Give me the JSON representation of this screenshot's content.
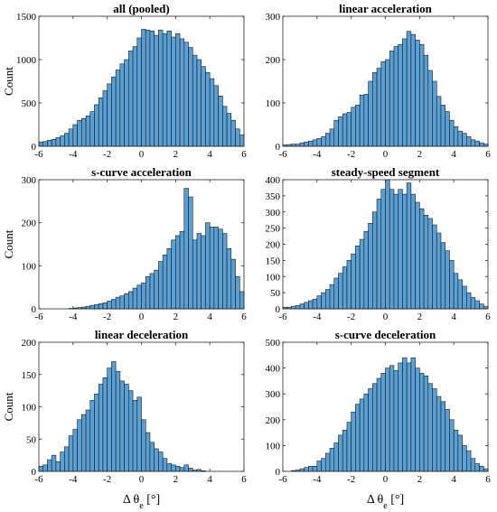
{
  "chart_data": [
    {
      "type": "histogram",
      "title": "all (pooled)",
      "ylabel": "Count",
      "xlabel": "",
      "xlim": [
        -6,
        6
      ],
      "ylim": [
        0,
        1500
      ],
      "xticks": [
        -6,
        -4,
        -2,
        0,
        2,
        4,
        6
      ],
      "yticks": [
        0,
        500,
        1000,
        1500
      ],
      "bin_edges": [
        -6.0,
        -5.75,
        -5.5,
        -5.25,
        -5.0,
        -4.75,
        -4.5,
        -4.25,
        -4.0,
        -3.75,
        -3.5,
        -3.25,
        -3.0,
        -2.75,
        -2.5,
        -2.25,
        -2.0,
        -1.75,
        -1.5,
        -1.25,
        -1.0,
        -0.75,
        -0.5,
        -0.25,
        0.0,
        0.25,
        0.5,
        0.75,
        1.0,
        1.25,
        1.5,
        1.75,
        2.0,
        2.25,
        2.5,
        2.75,
        3.0,
        3.25,
        3.5,
        3.75,
        4.0,
        4.25,
        4.5,
        4.75,
        5.0,
        5.25,
        5.5,
        5.75,
        6.0
      ],
      "counts": [
        50,
        55,
        70,
        80,
        100,
        120,
        150,
        200,
        250,
        300,
        320,
        350,
        400,
        480,
        560,
        640,
        720,
        800,
        880,
        950,
        1000,
        1100,
        1150,
        1250,
        1350,
        1340,
        1330,
        1280,
        1340,
        1300,
        1330,
        1260,
        1300,
        1240,
        1200,
        1140,
        1050,
        1000,
        920,
        850,
        780,
        700,
        580,
        460,
        380,
        300,
        200,
        130
      ]
    },
    {
      "type": "histogram",
      "title": "linear acceleration",
      "ylabel": "",
      "xlabel": "",
      "xlim": [
        -6,
        6
      ],
      "ylim": [
        0,
        300
      ],
      "xticks": [
        -6,
        -4,
        -2,
        0,
        2,
        4,
        6
      ],
      "yticks": [
        0,
        100,
        200,
        300
      ],
      "bin_edges": [
        -6.0,
        -5.75,
        -5.5,
        -5.25,
        -5.0,
        -4.75,
        -4.5,
        -4.25,
        -4.0,
        -3.75,
        -3.5,
        -3.25,
        -3.0,
        -2.75,
        -2.5,
        -2.25,
        -2.0,
        -1.75,
        -1.5,
        -1.25,
        -1.0,
        -0.75,
        -0.5,
        -0.25,
        0.0,
        0.25,
        0.5,
        0.75,
        1.0,
        1.25,
        1.5,
        1.75,
        2.0,
        2.25,
        2.5,
        2.75,
        3.0,
        3.25,
        3.5,
        3.75,
        4.0,
        4.25,
        4.5,
        4.75,
        5.0,
        5.25,
        5.5,
        5.75,
        6.0
      ],
      "counts": [
        3,
        4,
        5,
        5,
        8,
        10,
        12,
        15,
        18,
        22,
        30,
        40,
        60,
        68,
        75,
        78,
        90,
        95,
        118,
        120,
        150,
        170,
        180,
        195,
        200,
        220,
        230,
        235,
        248,
        265,
        258,
        245,
        235,
        210,
        175,
        150,
        115,
        95,
        80,
        60,
        45,
        35,
        30,
        22,
        15,
        12,
        8,
        5
      ]
    },
    {
      "type": "histogram",
      "title": "s-curve acceleration",
      "ylabel": "Count",
      "xlabel": "",
      "xlim": [
        -6,
        6
      ],
      "ylim": [
        0,
        300
      ],
      "xticks": [
        -6,
        -4,
        -2,
        0,
        2,
        4,
        6
      ],
      "yticks": [
        0,
        100,
        200,
        300
      ],
      "bin_edges": [
        -6.0,
        -5.75,
        -5.5,
        -5.25,
        -5.0,
        -4.75,
        -4.5,
        -4.25,
        -4.0,
        -3.75,
        -3.5,
        -3.25,
        -3.0,
        -2.75,
        -2.5,
        -2.25,
        -2.0,
        -1.75,
        -1.5,
        -1.25,
        -1.0,
        -0.75,
        -0.5,
        -0.25,
        0.0,
        0.25,
        0.5,
        0.75,
        1.0,
        1.25,
        1.5,
        1.75,
        2.0,
        2.25,
        2.5,
        2.75,
        3.0,
        3.25,
        3.5,
        3.75,
        4.0,
        4.25,
        4.5,
        4.75,
        5.0,
        5.25,
        5.5,
        5.75,
        6.0
      ],
      "counts": [
        0,
        0,
        0,
        0,
        0,
        0,
        0,
        1,
        2,
        3,
        4,
        6,
        8,
        10,
        12,
        14,
        18,
        22,
        27,
        30,
        35,
        40,
        48,
        55,
        60,
        75,
        82,
        90,
        110,
        125,
        140,
        160,
        170,
        180,
        280,
        260,
        160,
        175,
        170,
        200,
        190,
        190,
        185,
        175,
        140,
        115,
        75,
        40
      ]
    },
    {
      "type": "histogram",
      "title": "steady-speed segment",
      "ylabel": "",
      "xlabel": "",
      "xlim": [
        -6,
        6
      ],
      "ylim": [
        0,
        400
      ],
      "xticks": [
        -6,
        -4,
        -2,
        0,
        2,
        4,
        6
      ],
      "yticks": [
        0,
        50,
        100,
        150,
        200,
        250,
        300,
        350,
        400
      ],
      "bin_edges": [
        -6.0,
        -5.75,
        -5.5,
        -5.25,
        -5.0,
        -4.75,
        -4.5,
        -4.25,
        -4.0,
        -3.75,
        -3.5,
        -3.25,
        -3.0,
        -2.75,
        -2.5,
        -2.25,
        -2.0,
        -1.75,
        -1.5,
        -1.25,
        -1.0,
        -0.75,
        -0.5,
        -0.25,
        0.0,
        0.25,
        0.5,
        0.75,
        1.0,
        1.25,
        1.5,
        1.75,
        2.0,
        2.25,
        2.5,
        2.75,
        3.0,
        3.25,
        3.5,
        3.75,
        4.0,
        4.25,
        4.5,
        4.75,
        5.0,
        5.25,
        5.5,
        5.75,
        6.0
      ],
      "counts": [
        5,
        5,
        8,
        10,
        15,
        20,
        25,
        30,
        40,
        50,
        60,
        75,
        95,
        110,
        130,
        150,
        170,
        195,
        215,
        240,
        265,
        300,
        340,
        370,
        400,
        370,
        355,
        370,
        355,
        390,
        355,
        330,
        310,
        290,
        280,
        260,
        235,
        205,
        180,
        150,
        110,
        90,
        70,
        50,
        35,
        25,
        15,
        8
      ]
    },
    {
      "type": "histogram",
      "title": "linear deceleration",
      "ylabel": "Count",
      "xlabel": "Δ θe [°]",
      "xlim": [
        -6,
        6
      ],
      "ylim": [
        0,
        200
      ],
      "xticks": [
        -6,
        -4,
        -2,
        0,
        2,
        4,
        6
      ],
      "yticks": [
        0,
        50,
        100,
        150,
        200
      ],
      "bin_edges": [
        -6.0,
        -5.75,
        -5.5,
        -5.25,
        -5.0,
        -4.75,
        -4.5,
        -4.25,
        -4.0,
        -3.75,
        -3.5,
        -3.25,
        -3.0,
        -2.75,
        -2.5,
        -2.25,
        -2.0,
        -1.75,
        -1.5,
        -1.25,
        -1.0,
        -0.75,
        -0.5,
        -0.25,
        0.0,
        0.25,
        0.5,
        0.75,
        1.0,
        1.25,
        1.5,
        1.75,
        2.0,
        2.25,
        2.5,
        2.75,
        3.0,
        3.25,
        3.5,
        3.75,
        4.0,
        4.25,
        4.5,
        4.75,
        5.0,
        5.25,
        5.5,
        5.75,
        6.0
      ],
      "counts": [
        8,
        10,
        18,
        25,
        15,
        30,
        38,
        55,
        65,
        80,
        88,
        95,
        110,
        120,
        135,
        145,
        160,
        170,
        155,
        140,
        135,
        125,
        110,
        115,
        80,
        60,
        45,
        35,
        30,
        20,
        12,
        10,
        8,
        6,
        10,
        5,
        2,
        3,
        1,
        0,
        0,
        0,
        0,
        0,
        0,
        0,
        0,
        0
      ]
    },
    {
      "type": "histogram",
      "title": "s-curve deceleration",
      "ylabel": "",
      "xlabel": "Δ θe [°]",
      "xlim": [
        -6,
        6
      ],
      "ylim": [
        0,
        500
      ],
      "xticks": [
        -6,
        -4,
        -2,
        0,
        2,
        4,
        6
      ],
      "yticks": [
        0,
        100,
        200,
        300,
        400,
        500
      ],
      "bin_edges": [
        -6.0,
        -5.75,
        -5.5,
        -5.25,
        -5.0,
        -4.75,
        -4.5,
        -4.25,
        -4.0,
        -3.75,
        -3.5,
        -3.25,
        -3.0,
        -2.75,
        -2.5,
        -2.25,
        -2.0,
        -1.75,
        -1.5,
        -1.25,
        -1.0,
        -0.75,
        -0.5,
        -0.25,
        0.0,
        0.25,
        0.5,
        0.75,
        1.0,
        1.25,
        1.5,
        1.75,
        2.0,
        2.25,
        2.5,
        2.75,
        3.0,
        3.25,
        3.5,
        3.75,
        4.0,
        4.25,
        4.5,
        4.75,
        5.0,
        5.25,
        5.5,
        5.75,
        6.0
      ],
      "counts": [
        0,
        0,
        3,
        5,
        10,
        15,
        20,
        20,
        40,
        50,
        70,
        90,
        110,
        140,
        160,
        190,
        230,
        260,
        280,
        300,
        320,
        340,
        360,
        380,
        400,
        410,
        390,
        420,
        440,
        420,
        440,
        400,
        380,
        370,
        340,
        320,
        290,
        270,
        240,
        200,
        160,
        140,
        100,
        80,
        50,
        30,
        20,
        10
      ]
    }
  ]
}
